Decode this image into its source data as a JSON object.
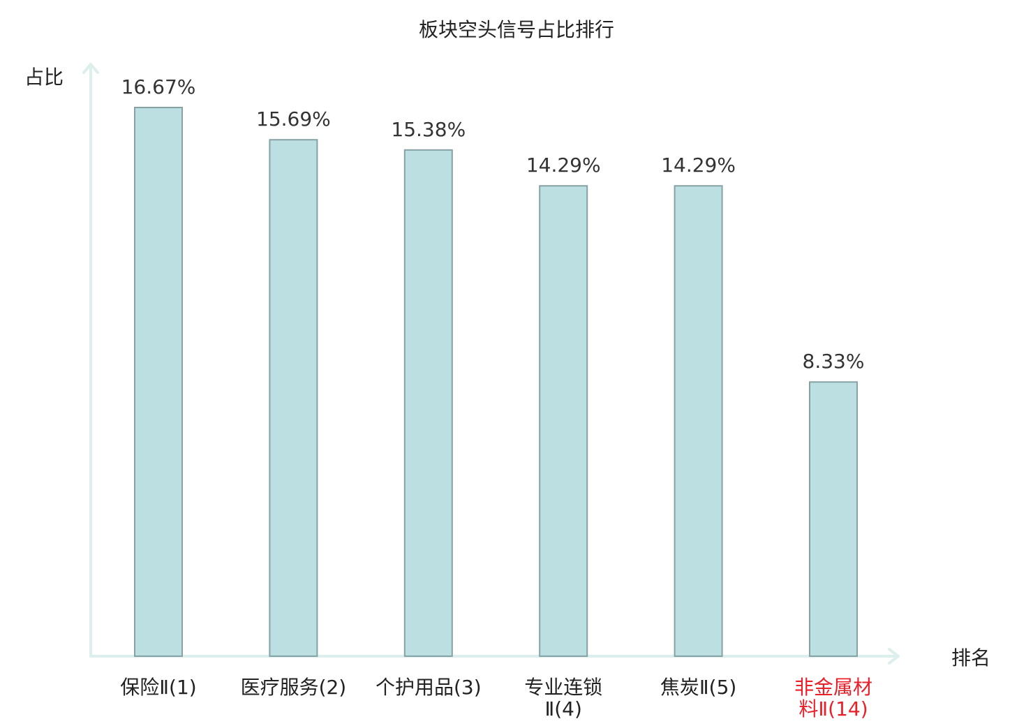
{
  "chart_data": {
    "type": "bar",
    "title": "板块空头信号占比排行",
    "ylabel": "占比",
    "xlabel": "排名",
    "categories": [
      [
        "保险Ⅱ(1)"
      ],
      [
        "医疗服务(2)"
      ],
      [
        "个护用品(3)"
      ],
      [
        "专业连锁",
        "Ⅱ(4)"
      ],
      [
        "焦炭Ⅱ(5)"
      ],
      [
        "非金属材",
        "料Ⅱ(14)"
      ]
    ],
    "values": [
      16.67,
      15.69,
      15.38,
      14.29,
      14.29,
      8.33
    ],
    "value_labels": [
      "16.67%",
      "15.69%",
      "15.38%",
      "14.29%",
      "14.29%",
      "8.33%"
    ],
    "highlight_index": 5,
    "ylim": [
      0,
      16.67
    ],
    "grid": false,
    "colors": {
      "bar_fill": "#bce0e2",
      "bar_stroke": "#86a2a4",
      "axis": "#dcefed",
      "text": "#222222",
      "value_text": "#333333",
      "highlight_text": "#e8202a"
    }
  }
}
